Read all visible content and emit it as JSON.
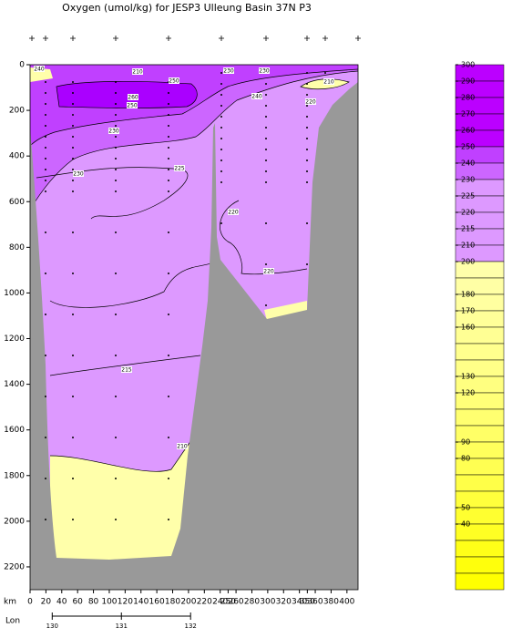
{
  "header": {
    "title": "Oxygen (umol/kg) for JESP3 Ulleung Basin 37N P3"
  },
  "chart_data": {
    "type": "section",
    "xlabel": "km",
    "lon_label": "Lon",
    "xlim": [
      0,
      414
    ],
    "xticks": [
      0,
      20,
      40,
      60,
      80,
      100,
      120,
      140,
      160,
      180,
      200,
      220,
      240,
      250,
      260,
      280,
      300,
      320,
      340,
      350,
      360,
      380,
      400
    ],
    "ylim": [
      0,
      2300
    ],
    "yticks": [
      0,
      200,
      400,
      600,
      800,
      1000,
      1200,
      1400,
      1600,
      1800,
      2000,
      2200
    ],
    "lon_lim": [
      129.68,
      134.42
    ],
    "lon_ticks": [
      130,
      131,
      132
    ],
    "contour_labels": [
      "240",
      "210",
      "250",
      "230",
      "230",
      "210",
      "260",
      "250",
      "240",
      "220",
      "230",
      "225",
      "230",
      "220",
      "220",
      "215",
      "210"
    ],
    "colorbar": {
      "levels": [
        300,
        290,
        280,
        270,
        260,
        250,
        240,
        230,
        225,
        220,
        215,
        210,
        200,
        null,
        180,
        170,
        160,
        null,
        null,
        130,
        120,
        null,
        null,
        90,
        80,
        null,
        null,
        50,
        40,
        null,
        null,
        null,
        null
      ],
      "colors": [
        "#bb00ff",
        "#bb00ff",
        "#bb00ff",
        "#bb00ff",
        "#bb00ff",
        "#c040ff",
        "#cc66ff",
        "#dd99ff",
        "#dd99ff",
        "#dd99ff",
        "#dd99ff",
        "#dd99ff",
        "#ffffaa",
        "#ffffa5",
        "#ffffa0",
        "#ffff99",
        "#ffff94",
        "#ffff8e",
        "#ffff88",
        "#ffff80",
        "#ffff78",
        "#ffff70",
        "#ffff66",
        "#ffff5c",
        "#ffff52",
        "#ffff48",
        "#ffff3c",
        "#ffff30",
        "#ffff24",
        "#ffff18",
        "#ffff0c",
        "#ffff00"
      ]
    }
  }
}
